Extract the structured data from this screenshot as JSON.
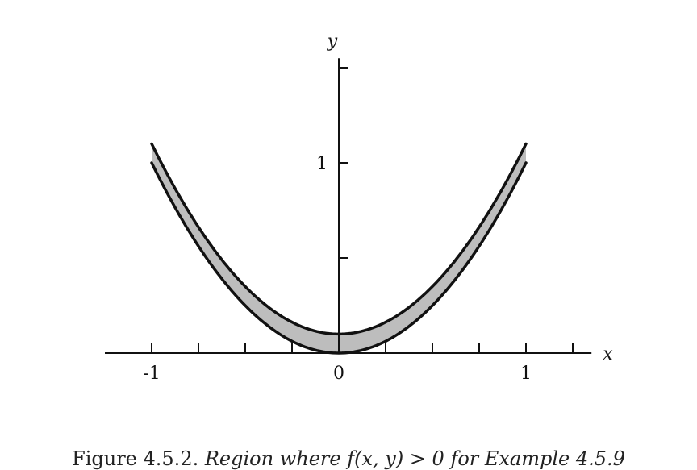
{
  "chart_data": {
    "type": "area",
    "title": "",
    "xlabel": "x",
    "ylabel": "y",
    "xlim": [
      -1.25,
      1.35
    ],
    "ylim": [
      0,
      1.55
    ],
    "x_ticks": [
      -1,
      -0.75,
      -0.5,
      -0.25,
      0,
      0.25,
      0.5,
      0.75,
      1,
      1.25
    ],
    "x_tick_labels": [
      {
        "x": -1,
        "label": "-1"
      },
      {
        "x": 0,
        "label": "0"
      },
      {
        "x": 1,
        "label": "1"
      }
    ],
    "y_ticks": [
      0.5,
      1,
      1.5
    ],
    "y_tick_labels": [
      {
        "y": 1,
        "label": "1"
      }
    ],
    "grid": false,
    "region": {
      "description_visible": false,
      "lower_curve": {
        "expression": "y = x^2",
        "x_range": [
          -1,
          1
        ]
      },
      "upper_curve": {
        "expression": "y = x^2 + 0.1",
        "x_range": [
          -1,
          1
        ]
      },
      "fill_color": "#bdbdbd"
    }
  },
  "caption": {
    "label": "Figure 4.5.2.",
    "text": "Region where f(x, y) > 0 for Example 4.5.9"
  }
}
